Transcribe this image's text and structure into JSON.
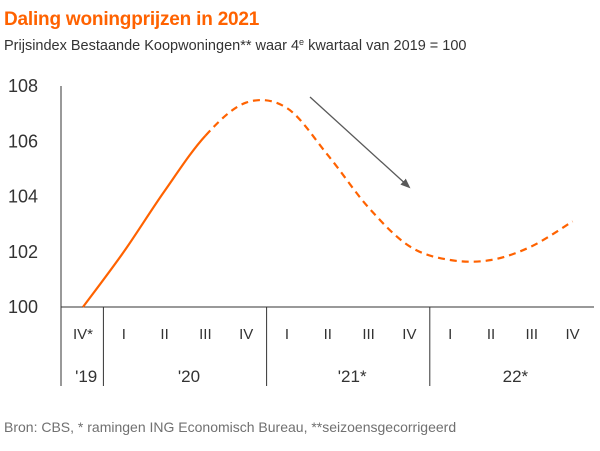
{
  "header": {
    "title": "Daling woningprijzen in 2021",
    "subtitle_main": "Prijsindex Bestaande Koopwoningen** waar 4",
    "subtitle_sup": "e",
    "subtitle_end": " kwartaal  van 2019 = 100"
  },
  "footer": {
    "source": "Bron: CBS, * ramingen ING Economisch Bureau, **seizoensgecorrigeerd"
  },
  "colors": {
    "line": "#ff6200",
    "arrow": "#595959",
    "title": "#ff6200"
  },
  "chart_data": {
    "type": "line",
    "categories": [
      "IV*",
      "I",
      "II",
      "III",
      "IV",
      "I",
      "II",
      "III",
      "IV",
      "I",
      "II",
      "III",
      "IV"
    ],
    "year_groups": [
      {
        "label": "'19",
        "span": 1
      },
      {
        "label": "'20",
        "span": 4
      },
      {
        "label": "'21*",
        "span": 4
      },
      {
        "label": "22*",
        "span": 4
      }
    ],
    "series": [
      {
        "values": [
          100.0,
          102.0,
          104.2,
          106.2,
          107.4,
          107.2,
          105.5,
          103.6,
          102.2,
          101.7,
          101.7,
          102.2,
          103.1
        ],
        "solid_through_index": 3
      }
    ],
    "ylim": [
      100,
      108
    ],
    "yticks": [
      100,
      102,
      104,
      106,
      108
    ],
    "grid": false,
    "annotation": "downward-arrow"
  }
}
